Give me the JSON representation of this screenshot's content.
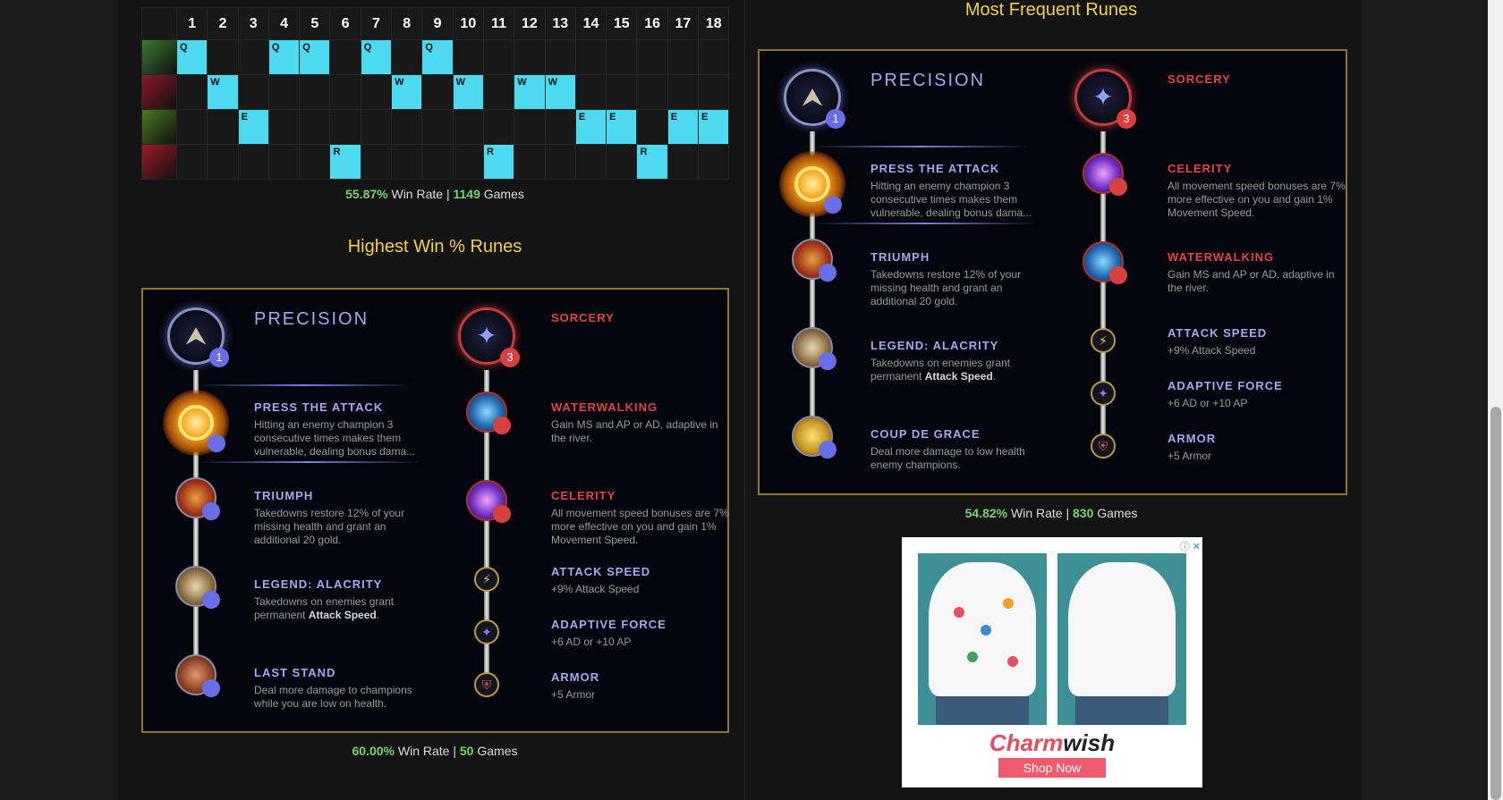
{
  "skill_order": {
    "levels": [
      "1",
      "2",
      "3",
      "4",
      "5",
      "6",
      "7",
      "8",
      "9",
      "10",
      "11",
      "12",
      "13",
      "14",
      "15",
      "16",
      "17",
      "18"
    ],
    "rows": [
      {
        "key": "Q",
        "levels": [
          1,
          4,
          5,
          7,
          9
        ]
      },
      {
        "key": "W",
        "levels": [
          2,
          8,
          10,
          12,
          13
        ]
      },
      {
        "key": "E",
        "levels": [
          3,
          14,
          15,
          17,
          18
        ]
      },
      {
        "key": "R",
        "levels": [
          6,
          11,
          16
        ]
      }
    ],
    "stats": {
      "win_rate": "55.87%",
      "win_label": "Win Rate |",
      "games": "1149",
      "games_label": "Games"
    }
  },
  "highest_win": {
    "heading": "Highest Win % Runes",
    "primary_title": "PRECISION",
    "primary_badge": "1",
    "secondary_title": "SORCERY",
    "secondary_badge": "3",
    "primary_runes": [
      {
        "name": "PRESS THE ATTACK",
        "desc": "Hitting an enemy champion 3 consecutive times makes them vulnerable, dealing bonus dama..."
      },
      {
        "name": "TRIUMPH",
        "desc": "Takedowns restore 12% of your missing health and grant an additional 20 gold."
      },
      {
        "name": "LEGEND: ALACRITY",
        "desc_pre": "Takedowns on enemies grant permanent ",
        "desc_bold": "Attack Speed",
        "desc_post": "."
      },
      {
        "name": "LAST STAND",
        "desc": "Deal more damage to champions while you are low on health."
      }
    ],
    "secondary_runes": [
      {
        "name": "WATERWALKING",
        "desc": "Gain MS and AP or AD, adaptive in the river."
      },
      {
        "name": "CELERITY",
        "desc": "All movement speed bonuses are 7% more effective on you and gain 1% Movement Speed."
      }
    ],
    "shards": [
      {
        "name": "ATTACK SPEED",
        "desc": "+9% Attack Speed"
      },
      {
        "name": "ADAPTIVE FORCE",
        "desc": "+6 AD or +10 AP"
      },
      {
        "name": "ARMOR",
        "desc": "+5 Armor"
      }
    ],
    "stats": {
      "win_rate": "60.00%",
      "win_label": "Win Rate |",
      "games": "50",
      "games_label": "Games"
    }
  },
  "most_frequent": {
    "heading": "Most Frequent Runes",
    "primary_title": "PRECISION",
    "primary_badge": "1",
    "secondary_title": "SORCERY",
    "secondary_badge": "3",
    "primary_runes": [
      {
        "name": "PRESS THE ATTACK",
        "desc": "Hitting an enemy champion 3 consecutive times makes them vulnerable, dealing bonus dama..."
      },
      {
        "name": "TRIUMPH",
        "desc": "Takedowns restore 12% of your missing health and grant an additional 20 gold."
      },
      {
        "name": "LEGEND: ALACRITY",
        "desc_pre": "Takedowns on enemies grant permanent ",
        "desc_bold": "Attack Speed",
        "desc_post": "."
      },
      {
        "name": "COUP DE GRACE",
        "desc": "Deal more damage to low health enemy champions."
      }
    ],
    "secondary_runes": [
      {
        "name": "CELERITY",
        "desc": "All movement speed bonuses are 7% more effective on you and gain 1% Movement Speed."
      },
      {
        "name": "WATERWALKING",
        "desc": "Gain MS and AP or AD, adaptive in the river."
      }
    ],
    "shards": [
      {
        "name": "ATTACK SPEED",
        "desc": "+9% Attack Speed"
      },
      {
        "name": "ADAPTIVE FORCE",
        "desc": "+6 AD or +10 AP"
      },
      {
        "name": "ARMOR",
        "desc": "+5 Armor"
      }
    ],
    "stats": {
      "win_rate": "54.82%",
      "win_label": "Win Rate |",
      "games": "830",
      "games_label": "Games"
    }
  },
  "ad": {
    "brand_main": "Charm",
    "brand_accent": "wish",
    "cta": "Shop Now",
    "close_glyph": "ⓘ ✕"
  },
  "colors": {
    "skill_fill": "#4dd9ef",
    "panel_border": "#8d7537",
    "heading": "#f0d050",
    "precision": "#a5a8f0",
    "sorcery": "#e04545",
    "win_green": "#75d46a"
  }
}
